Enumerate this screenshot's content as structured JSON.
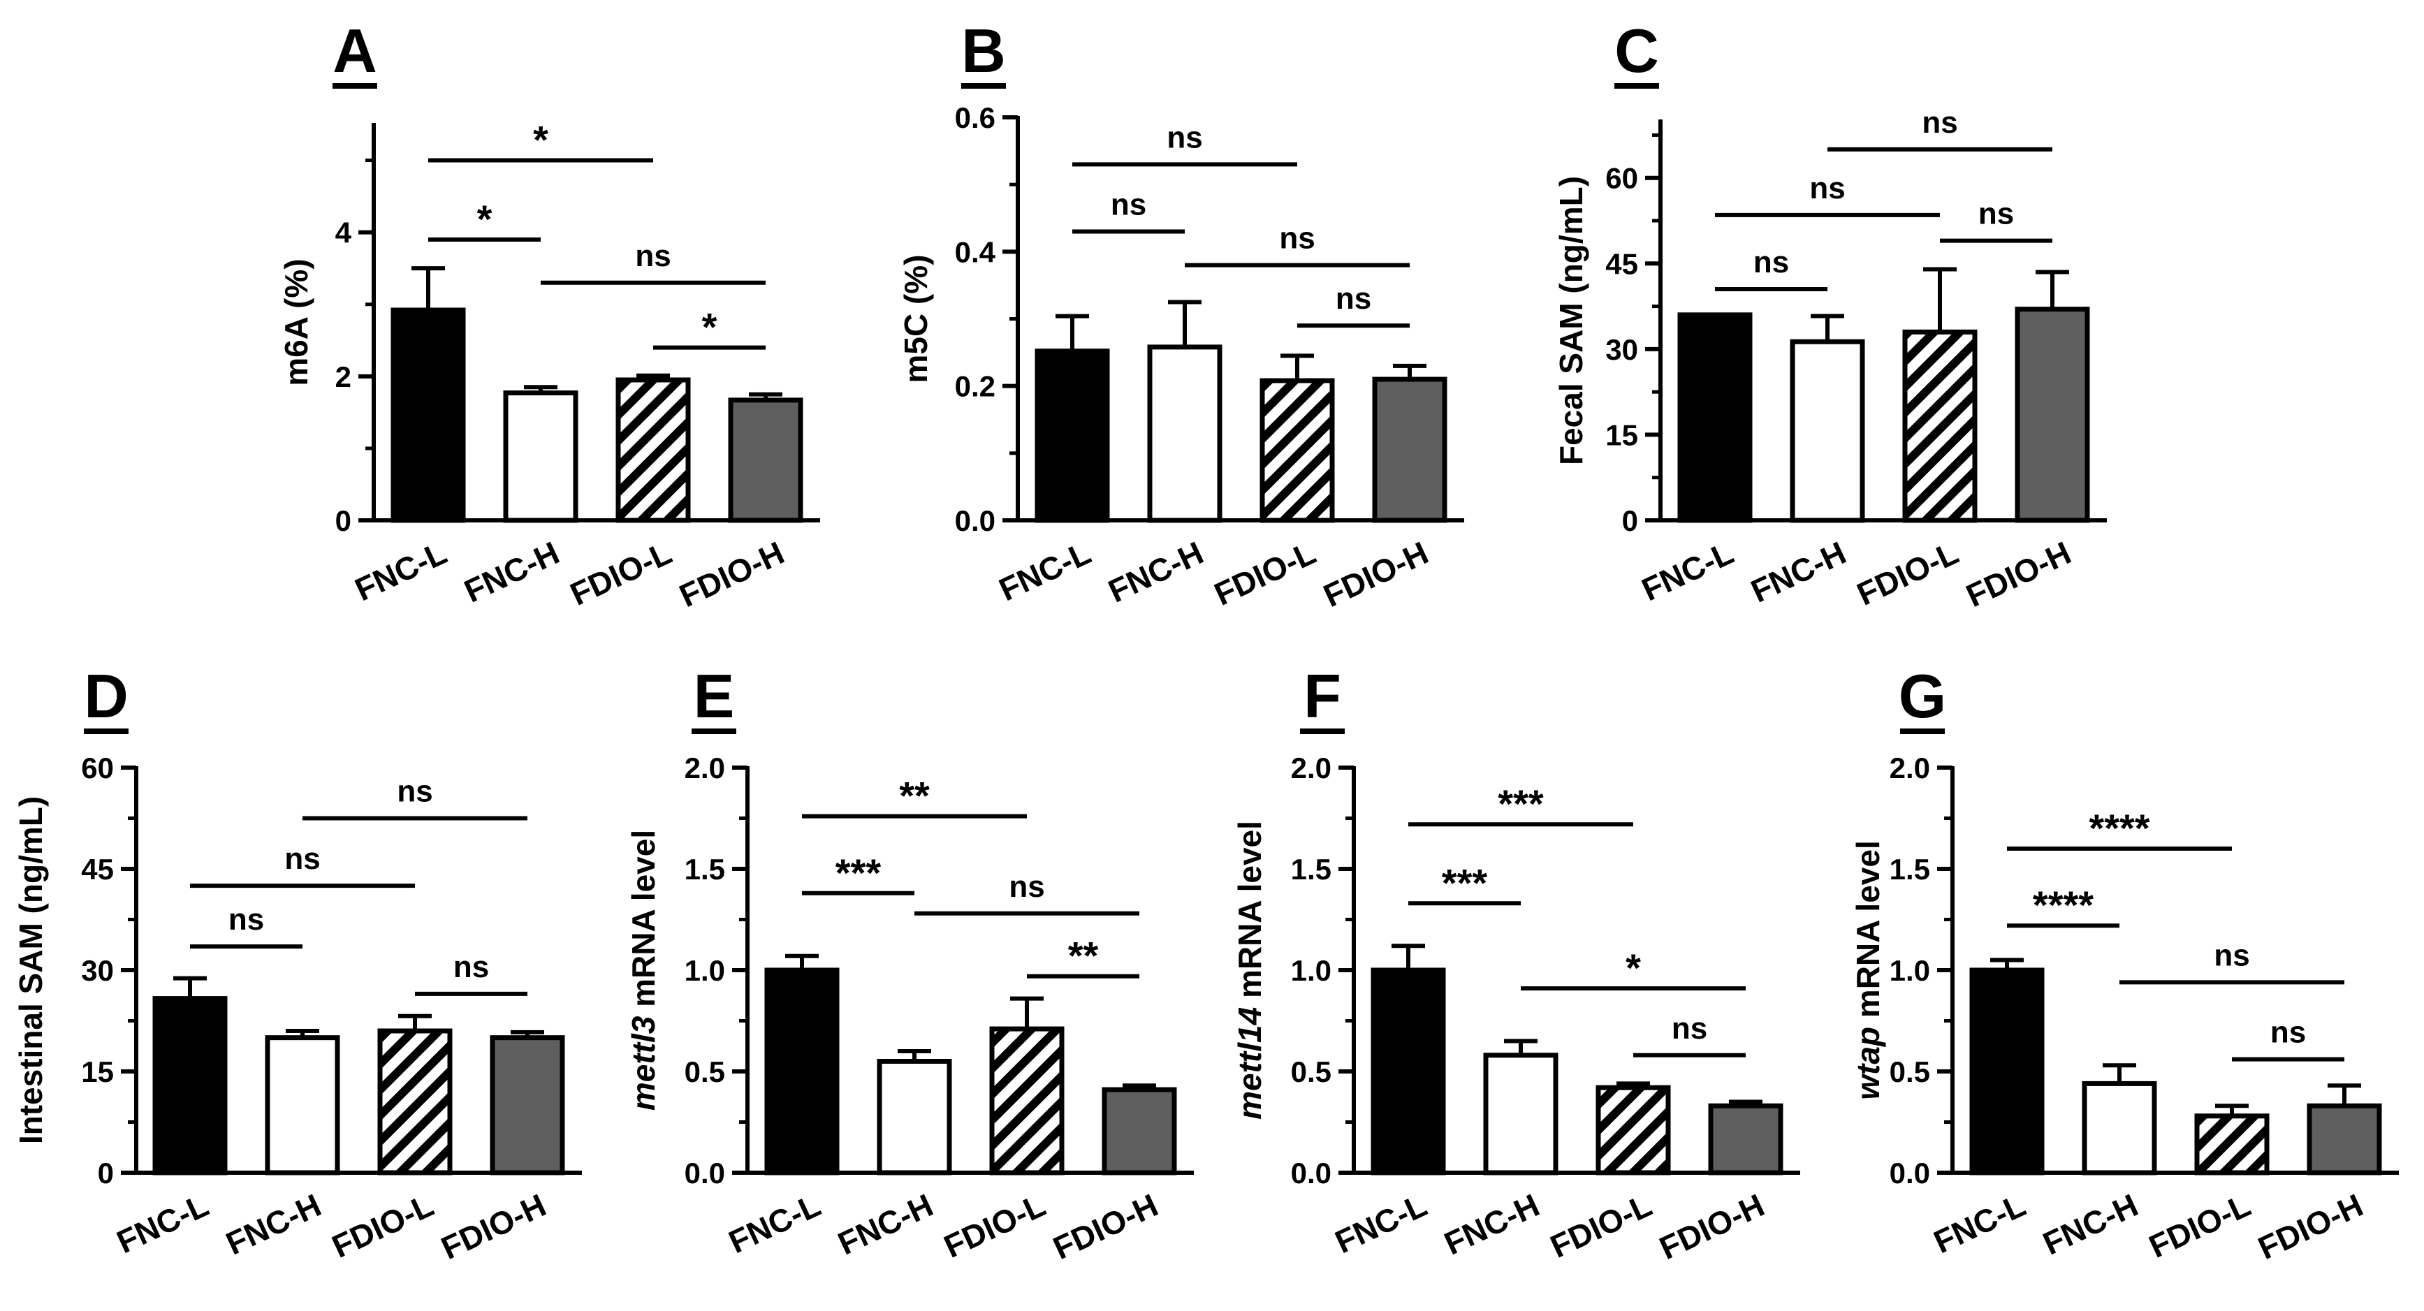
{
  "figure": {
    "layout": "3 panels in top row, 4 panels in bottom row"
  },
  "colors": {
    "FNC-L": "#000000",
    "FNC-H": "#ffffff",
    "FDIO-L": "hatched",
    "FDIO-H": "#5f5f5f",
    "axis": "#000000"
  },
  "chart_data": [
    {
      "panel": "A",
      "type": "bar",
      "ylabel": "m6A (%)",
      "ylabel_italic": "",
      "categories": [
        "FNC-L",
        "FNC-H",
        "FDIO-L",
        "FDIO-H"
      ],
      "values": [
        2.92,
        1.77,
        1.95,
        1.67
      ],
      "errors": [
        0.58,
        0.08,
        0.06,
        0.08
      ],
      "ylim": [
        0,
        5.5
      ],
      "major_ticks": [
        0,
        2,
        4
      ],
      "minor_ticks": [
        1,
        3,
        5
      ],
      "comparisons": [
        {
          "from": 0,
          "to": 2,
          "level": 5.0,
          "label": "*"
        },
        {
          "from": 0,
          "to": 1,
          "level": 3.9,
          "label": "*"
        },
        {
          "from": 1,
          "to": 3,
          "level": 3.3,
          "label": "ns"
        },
        {
          "from": 2,
          "to": 3,
          "level": 2.4,
          "label": "*"
        }
      ]
    },
    {
      "panel": "B",
      "type": "bar",
      "ylabel": "m5C (%)",
      "ylabel_italic": "",
      "categories": [
        "FNC-L",
        "FNC-H",
        "FDIO-L",
        "FDIO-H"
      ],
      "values": [
        0.252,
        0.258,
        0.208,
        0.21
      ],
      "errors": [
        0.052,
        0.067,
        0.037,
        0.02
      ],
      "ylim": [
        0,
        0.6
      ],
      "major_ticks": [
        0,
        0.2,
        0.4,
        0.6
      ],
      "minor_ticks": [
        0.1,
        0.3,
        0.5
      ],
      "tick_format": 1,
      "comparisons": [
        {
          "from": 0,
          "to": 2,
          "level": 0.53,
          "label": "ns"
        },
        {
          "from": 0,
          "to": 1,
          "level": 0.43,
          "label": "ns"
        },
        {
          "from": 1,
          "to": 3,
          "level": 0.38,
          "label": "ns"
        },
        {
          "from": 2,
          "to": 3,
          "level": 0.29,
          "label": "ns"
        }
      ]
    },
    {
      "panel": "C",
      "type": "bar",
      "ylabel": "Fecal SAM (ng/mL)",
      "ylabel_italic": "",
      "categories": [
        "FNC-L",
        "FNC-H",
        "FDIO-L",
        "FDIO-H"
      ],
      "values": [
        36,
        31.3,
        33,
        37
      ],
      "errors": [
        0,
        4.5,
        11,
        6.5
      ],
      "ylim": [
        0,
        70
      ],
      "major_ticks": [
        0,
        15,
        30,
        45,
        60
      ],
      "minor_ticks": [
        7.5,
        22.5,
        37.5,
        52.5,
        67.5
      ],
      "comparisons": [
        {
          "from": 1,
          "to": 3,
          "level": 65,
          "label": "ns"
        },
        {
          "from": 0,
          "to": 2,
          "level": 53.5,
          "label": "ns"
        },
        {
          "from": 2,
          "to": 3,
          "level": 49,
          "label": "ns"
        },
        {
          "from": 0,
          "to": 1,
          "level": 40.5,
          "label": "ns"
        }
      ]
    },
    {
      "panel": "D",
      "type": "bar",
      "ylabel": "Intestinal SAM (ng/mL)",
      "ylabel_italic": "",
      "categories": [
        "FNC-L",
        "FNC-H",
        "FDIO-L",
        "FDIO-H"
      ],
      "values": [
        25.8,
        20,
        21,
        20
      ],
      "errors": [
        3,
        1,
        2.2,
        0.8
      ],
      "ylim": [
        0,
        60
      ],
      "major_ticks": [
        0,
        15,
        30,
        45,
        60
      ],
      "minor_ticks": [
        7.5,
        22.5,
        37.5,
        52.5
      ],
      "comparisons": [
        {
          "from": 1,
          "to": 3,
          "level": 52.5,
          "label": "ns"
        },
        {
          "from": 0,
          "to": 2,
          "level": 42.5,
          "label": "ns"
        },
        {
          "from": 0,
          "to": 1,
          "level": 33.5,
          "label": "ns"
        },
        {
          "from": 2,
          "to": 3,
          "level": 26.5,
          "label": "ns"
        }
      ]
    },
    {
      "panel": "E",
      "type": "bar",
      "ylabel": " mRNA level",
      "ylabel_italic": "mettl3",
      "categories": [
        "FNC-L",
        "FNC-H",
        "FDIO-L",
        "FDIO-H"
      ],
      "values": [
        1.0,
        0.55,
        0.71,
        0.41
      ],
      "errors": [
        0.07,
        0.05,
        0.15,
        0.02
      ],
      "ylim": [
        0,
        2.0
      ],
      "major_ticks": [
        0,
        0.5,
        1.0,
        1.5,
        2.0
      ],
      "minor_ticks": [
        0.25,
        0.75,
        1.25,
        1.75
      ],
      "tick_format": 1,
      "comparisons": [
        {
          "from": 0,
          "to": 2,
          "level": 1.76,
          "label": "**"
        },
        {
          "from": 0,
          "to": 1,
          "level": 1.38,
          "label": "***"
        },
        {
          "from": 1,
          "to": 3,
          "level": 1.28,
          "label": "ns"
        },
        {
          "from": 2,
          "to": 3,
          "level": 0.97,
          "label": "**"
        }
      ]
    },
    {
      "panel": "F",
      "type": "bar",
      "ylabel": " mRNA level",
      "ylabel_italic": "mettl14",
      "categories": [
        "FNC-L",
        "FNC-H",
        "FDIO-L",
        "FDIO-H"
      ],
      "values": [
        1.0,
        0.58,
        0.42,
        0.33
      ],
      "errors": [
        0.12,
        0.07,
        0.02,
        0.02
      ],
      "ylim": [
        0,
        2.0
      ],
      "major_ticks": [
        0,
        0.5,
        1.0,
        1.5,
        2.0
      ],
      "minor_ticks": [
        0.25,
        0.75,
        1.25,
        1.75
      ],
      "tick_format": 1,
      "comparisons": [
        {
          "from": 0,
          "to": 2,
          "level": 1.72,
          "label": "***"
        },
        {
          "from": 0,
          "to": 1,
          "level": 1.33,
          "label": "***"
        },
        {
          "from": 1,
          "to": 3,
          "level": 0.91,
          "label": "*"
        },
        {
          "from": 2,
          "to": 3,
          "level": 0.58,
          "label": "ns"
        }
      ]
    },
    {
      "panel": "G",
      "type": "bar",
      "ylabel": " mRNA level",
      "ylabel_italic": "wtap",
      "categories": [
        "FNC-L",
        "FNC-H",
        "FDIO-L",
        "FDIO-H"
      ],
      "values": [
        1.0,
        0.44,
        0.28,
        0.33
      ],
      "errors": [
        0.05,
        0.09,
        0.05,
        0.1
      ],
      "ylim": [
        0,
        2.0
      ],
      "major_ticks": [
        0,
        0.5,
        1.0,
        1.5,
        2.0
      ],
      "minor_ticks": [
        0.25,
        0.75,
        1.25,
        1.75
      ],
      "tick_format": 1,
      "comparisons": [
        {
          "from": 0,
          "to": 2,
          "level": 1.6,
          "label": "****"
        },
        {
          "from": 0,
          "to": 1,
          "level": 1.22,
          "label": "****"
        },
        {
          "from": 1,
          "to": 3,
          "level": 0.94,
          "label": "ns"
        },
        {
          "from": 2,
          "to": 3,
          "level": 0.56,
          "label": "ns"
        }
      ]
    }
  ]
}
